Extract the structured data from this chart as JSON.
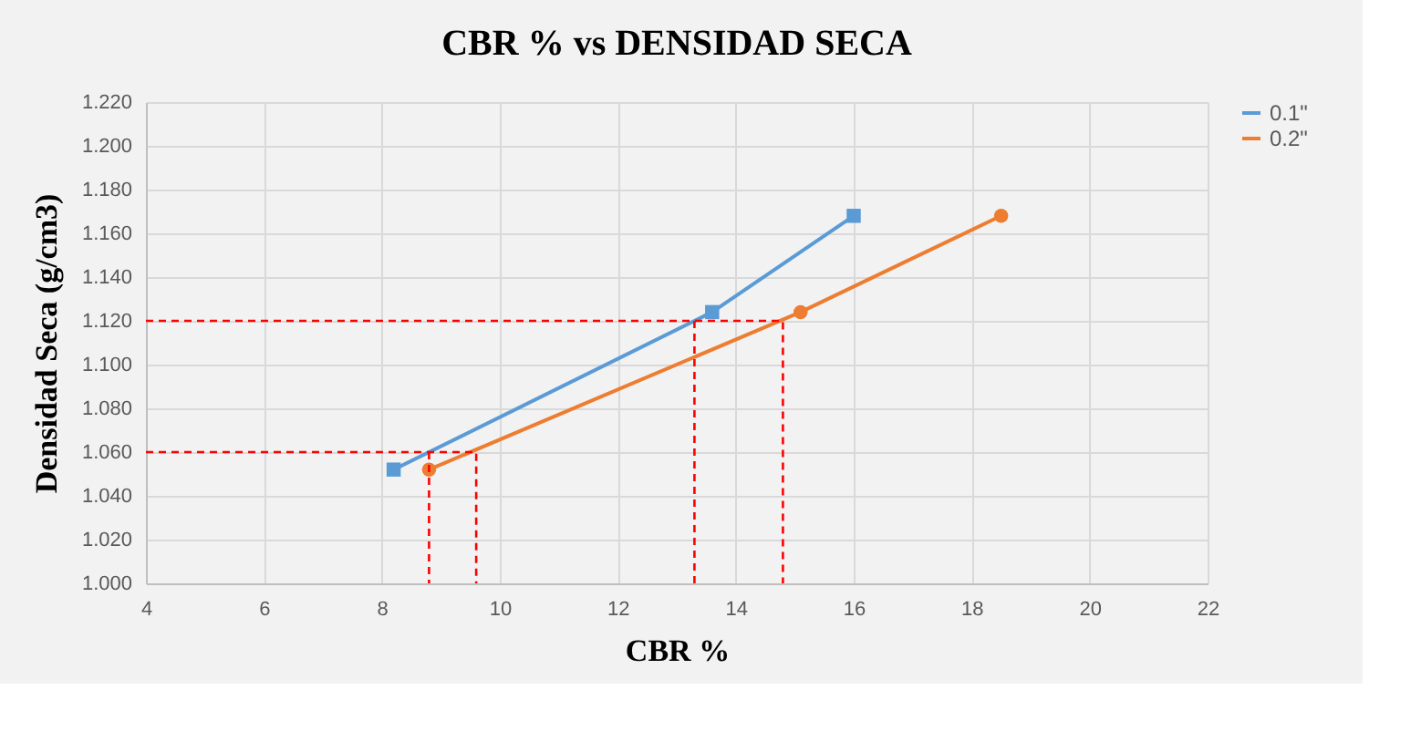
{
  "chart_data": {
    "type": "line",
    "title": "CBR % vs DENSIDAD SECA",
    "xlabel": "CBR %",
    "ylabel": "Densidad Seca (g/cm3)",
    "xlim": [
      4,
      22
    ],
    "xticks": [
      4,
      6,
      8,
      10,
      12,
      14,
      16,
      18,
      20,
      22
    ],
    "ylim": [
      1.0,
      1.22
    ],
    "yticks": [
      {
        "value": 1.0,
        "label": "1.000"
      },
      {
        "value": 1.02,
        "label": "1.020"
      },
      {
        "value": 1.04,
        "label": "1.040"
      },
      {
        "value": 1.06,
        "label": "1.060"
      },
      {
        "value": 1.08,
        "label": "1.080"
      },
      {
        "value": 1.1,
        "label": "1.100"
      },
      {
        "value": 1.12,
        "label": "1.120"
      },
      {
        "value": 1.14,
        "label": "1.140"
      },
      {
        "value": 1.16,
        "label": "1.160"
      },
      {
        "value": 1.18,
        "label": "1.180"
      },
      {
        "value": 1.2,
        "label": "1.200"
      },
      {
        "value": 1.22,
        "label": "1.220"
      }
    ],
    "grid": true,
    "legend": "right",
    "series": [
      {
        "name": "0.1\"",
        "color": "#5b9bd5",
        "marker": "square",
        "x": [
          8.2,
          13.6,
          16.0
        ],
        "values": [
          1.052,
          1.124,
          1.168
        ]
      },
      {
        "name": "0.2\"",
        "color": "#ed7d31",
        "marker": "circle",
        "x": [
          8.8,
          15.1,
          18.5
        ],
        "values": [
          1.052,
          1.124,
          1.168
        ]
      },
      {
        "color": "#ff0000",
        "line_style": "dashed",
        "marker": "none",
        "x": [
          4,
          9.6,
          9.6
        ],
        "values": [
          1.06,
          1.06,
          1.0
        ]
      },
      {
        "color": "#ff0000",
        "line_style": "dashed",
        "marker": "none",
        "x": [
          8.8,
          8.8
        ],
        "values": [
          1.06,
          1.0
        ]
      },
      {
        "color": "#ff0000",
        "line_style": "dashed",
        "marker": "none",
        "x": [
          4,
          14.8,
          14.8
        ],
        "values": [
          1.12,
          1.12,
          1.0
        ]
      },
      {
        "color": "#ff0000",
        "line_style": "dashed",
        "marker": "none",
        "x": [
          13.3,
          13.3
        ],
        "values": [
          1.12,
          1.0
        ]
      }
    ]
  }
}
